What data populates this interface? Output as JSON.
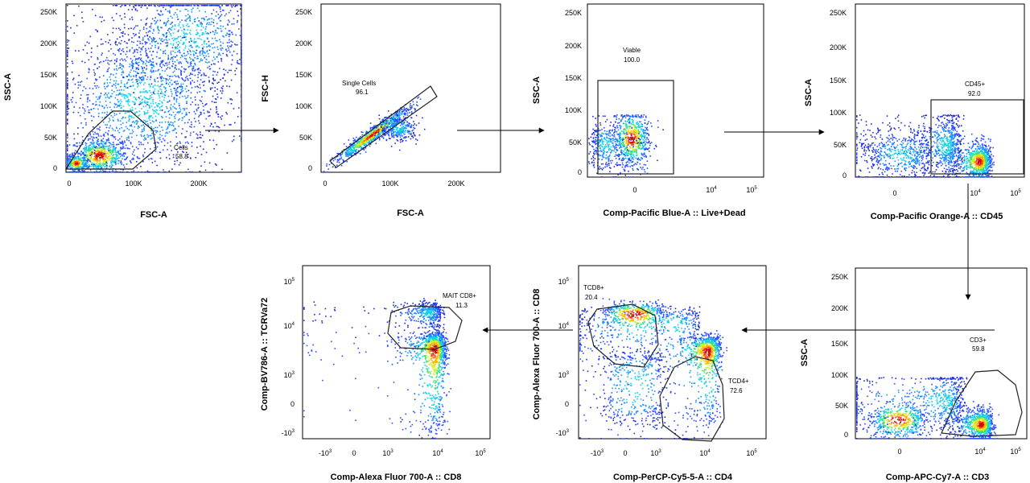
{
  "figure_title": "",
  "colors": {
    "density": [
      "#1e2bd6",
      "#2a4cff",
      "#1a90ff",
      "#12d2e6",
      "#3fe07a",
      "#d6ef1e",
      "#ffb000",
      "#ff3a10",
      "#c01010"
    ],
    "gate": "#222222",
    "arrow": "#000000"
  },
  "chart_data": [
    {
      "id": "p1",
      "type": "scatter",
      "subtype": "flow-density",
      "title": "",
      "xlabel": "FSC-A",
      "ylabel": "SSC-A",
      "x_scale": "linear",
      "y_scale": "linear",
      "xlim": [
        -5000,
        262000
      ],
      "ylim": [
        -5000,
        262000
      ],
      "xticks": [
        "0",
        "100K",
        "200K"
      ],
      "yticks": [
        "0",
        "50K",
        "100K",
        "150K",
        "200K",
        "250K"
      ],
      "gate": {
        "name": "Cells",
        "percent": "58.8"
      },
      "populations": [
        {
          "x": 45000,
          "y": 22000,
          "sx": 22000,
          "sy": 14000,
          "n": 700,
          "peak": true
        },
        {
          "x": 110000,
          "y": 110000,
          "sx": 65000,
          "sy": 60000,
          "n": 1600
        },
        {
          "x": 180000,
          "y": 210000,
          "sx": 55000,
          "sy": 45000,
          "n": 900
        },
        {
          "x": 10000,
          "y": 10000,
          "sx": 9000,
          "sy": 7000,
          "n": 250,
          "peak": true
        }
      ]
    },
    {
      "id": "p2",
      "type": "scatter",
      "subtype": "flow-density",
      "title": "",
      "xlabel": "FSC-A",
      "ylabel": "FSC-H",
      "x_scale": "linear",
      "y_scale": "linear",
      "xlim": [
        -5000,
        262000
      ],
      "ylim": [
        -5000,
        262000
      ],
      "xticks": [
        "0",
        "100K",
        "200K"
      ],
      "yticks": [
        "0",
        "50K",
        "100K",
        "150K",
        "200K",
        "250K"
      ],
      "gate": {
        "name": "Single  Cells",
        "percent": "96.1"
      },
      "populations": [
        {
          "x": 70000,
          "y": 55000,
          "sx": 28000,
          "sy": 6000,
          "n": 900,
          "diag": 0.75,
          "peak": true
        },
        {
          "x": 110000,
          "y": 65000,
          "sx": 14000,
          "sy": 10000,
          "n": 300
        }
      ]
    },
    {
      "id": "p3",
      "type": "scatter",
      "subtype": "flow-density",
      "title": "",
      "xlabel": "Comp-Pacific Blue-A :: Live+Dead",
      "ylabel": "SSC-A",
      "x_scale": "biexponential",
      "y_scale": "linear",
      "xlim": [
        -1000,
        200000
      ],
      "ylim": [
        -5000,
        262000
      ],
      "xticks": [
        "0",
        "10^4",
        "10^5"
      ],
      "yticks": [
        "0",
        "50K",
        "100K",
        "150K",
        "200K",
        "250K"
      ],
      "gate": {
        "name": "Viable",
        "percent": "100.0"
      },
      "populations": [
        {
          "x": 0,
          "y": 55000,
          "sx": 90,
          "sy": 22000,
          "n": 650,
          "peak": true,
          "ymax": 92000
        },
        {
          "x": -350,
          "y": 45000,
          "sx": 250,
          "sy": 20000,
          "n": 350,
          "ymax": 92000
        }
      ]
    },
    {
      "id": "p4",
      "type": "scatter",
      "subtype": "flow-density",
      "title": "",
      "xlabel": "Comp-Pacific Orange-A :: CD45",
      "ylabel": "SSC-A",
      "x_scale": "biexponential",
      "y_scale": "linear",
      "xlim": [
        -1000,
        200000
      ],
      "ylim": [
        -5000,
        262000
      ],
      "xticks": [
        "0",
        "10^4",
        "10^5"
      ],
      "yticks": [
        "0",
        "50K",
        "100K",
        "150K",
        "200K",
        "250K"
      ],
      "gate": {
        "name": "CD45+",
        "percent": "92.0"
      },
      "populations": [
        {
          "x": 12000,
          "y": 20000,
          "sx": 6000,
          "sy": 14000,
          "n": 800,
          "peak": true,
          "ymax": 92000
        },
        {
          "x": 1500,
          "y": 45000,
          "sx": 1200,
          "sy": 25000,
          "n": 700,
          "ymax": 92000
        },
        {
          "x": 50,
          "y": 30000,
          "sx": 250,
          "sy": 20000,
          "n": 500,
          "ymax": 92000
        }
      ]
    },
    {
      "id": "p5",
      "type": "scatter",
      "subtype": "flow-density",
      "title": "",
      "xlabel": "Comp-APC-Cy7-A :: CD3",
      "ylabel": "SSC-A",
      "x_scale": "biexponential",
      "y_scale": "linear",
      "xlim": [
        -1000,
        200000
      ],
      "ylim": [
        -5000,
        262000
      ],
      "xticks": [
        "0",
        "10^4",
        "10^5"
      ],
      "yticks": [
        "0",
        "50K",
        "100K",
        "150K",
        "200K",
        "250K"
      ],
      "gate": {
        "name": "CD3+",
        "percent": "59.8"
      },
      "populations": [
        {
          "x": 12000,
          "y": 18000,
          "sx": 6000,
          "sy": 12000,
          "n": 800,
          "peak": true,
          "ymax": 92000
        },
        {
          "x": 0,
          "y": 25000,
          "sx": 180,
          "sy": 15000,
          "n": 500,
          "peak": true,
          "ymax": 92000
        },
        {
          "x": 1200,
          "y": 55000,
          "sx": 1500,
          "sy": 25000,
          "n": 600,
          "ymax": 92000
        }
      ]
    },
    {
      "id": "p6",
      "type": "scatter",
      "subtype": "flow-density",
      "title": "",
      "xlabel": "Comp-PerCP-Cy5-5-A :: CD4",
      "ylabel": "Comp-Alexa Fluor 700-A :: CD8",
      "x_scale": "biexponential",
      "y_scale": "biexponential",
      "xlim": [
        -2000,
        200000
      ],
      "ylim": [
        -2000,
        200000
      ],
      "xticks": [
        "-10^3",
        "0",
        "10^3",
        "10^4",
        "10^5"
      ],
      "yticks": [
        "-10^3",
        "0",
        "10^3",
        "10^4",
        "10^5"
      ],
      "gates": [
        {
          "name": "TCD8+",
          "percent": "20.4"
        },
        {
          "name": "TCD4+",
          "percent": "72.6"
        }
      ],
      "populations": [
        {
          "x": 6000,
          "y": 800,
          "sx": 3500,
          "sy": 700,
          "n": 900,
          "peak": true
        },
        {
          "x": 0,
          "y": 9000,
          "sx": 200,
          "sy": 5000,
          "n": 550,
          "peak": true
        },
        {
          "x": 0,
          "y": 50,
          "sx": 250,
          "sy": 400,
          "n": 450
        },
        {
          "x": 800,
          "y": 5000,
          "sx": 1500,
          "sy": 4000,
          "n": 350
        }
      ]
    },
    {
      "id": "p7",
      "type": "scatter",
      "subtype": "flow-density",
      "title": "",
      "xlabel": "Comp-Alexa Fluor 700-A :: CD8",
      "ylabel": "Comp-BV786-A :: TCRVa72",
      "x_scale": "biexponential",
      "y_scale": "biexponential",
      "xlim": [
        -2000,
        200000
      ],
      "ylim": [
        -2000,
        200000
      ],
      "xticks": [
        "-10^3",
        "0",
        "10^3",
        "10^4",
        "10^5"
      ],
      "yticks": [
        "-10^3",
        "0",
        "10^3",
        "10^4",
        "10^5"
      ],
      "gate": {
        "name": "MAIT CD8+",
        "percent": "11.3"
      },
      "populations": [
        {
          "x": 7000,
          "y": 900,
          "sx": 3500,
          "sy": 900,
          "n": 1100,
          "peak": true
        },
        {
          "x": 5000,
          "y": 10000,
          "sx": 3000,
          "sy": 4500,
          "n": 450
        }
      ]
    }
  ]
}
